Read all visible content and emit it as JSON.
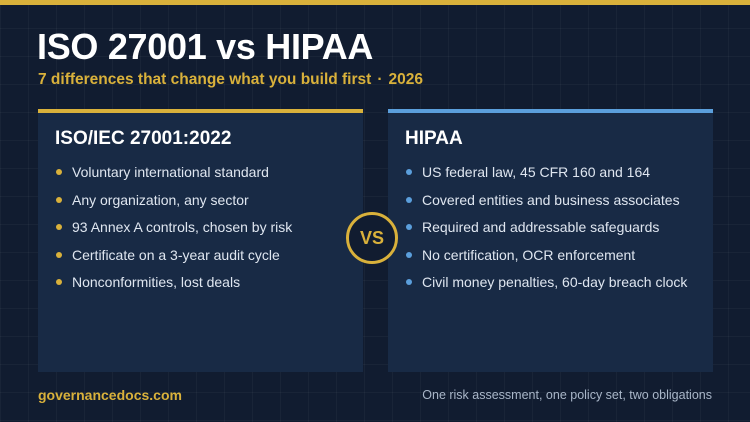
{
  "colors": {
    "gold": "#d9b13b",
    "blue": "#5b9fdc",
    "background": "#111c30",
    "card": "#182a45"
  },
  "header": {
    "title": "ISO 27001 vs HIPAA",
    "subtitle_main": "7 differences that change what you build first",
    "subtitle_separator": "·",
    "subtitle_year": "2026"
  },
  "left_card": {
    "title": "ISO/IEC 27001:2022",
    "items": [
      "Voluntary international standard",
      "Any organization, any sector",
      "93 Annex A controls, chosen by risk",
      "Certificate on a 3-year audit cycle",
      "Nonconformities, lost deals"
    ]
  },
  "right_card": {
    "title": "HIPAA",
    "items": [
      "US federal law, 45 CFR 160 and 164",
      "Covered entities and business associates",
      "Required and addressable safeguards",
      "No certification, OCR enforcement",
      "Civil money penalties, 60-day breach clock"
    ]
  },
  "vs_label": "VS",
  "footer": {
    "site": "governancedocs.com",
    "tagline": "One risk assessment, one policy set, two obligations"
  }
}
